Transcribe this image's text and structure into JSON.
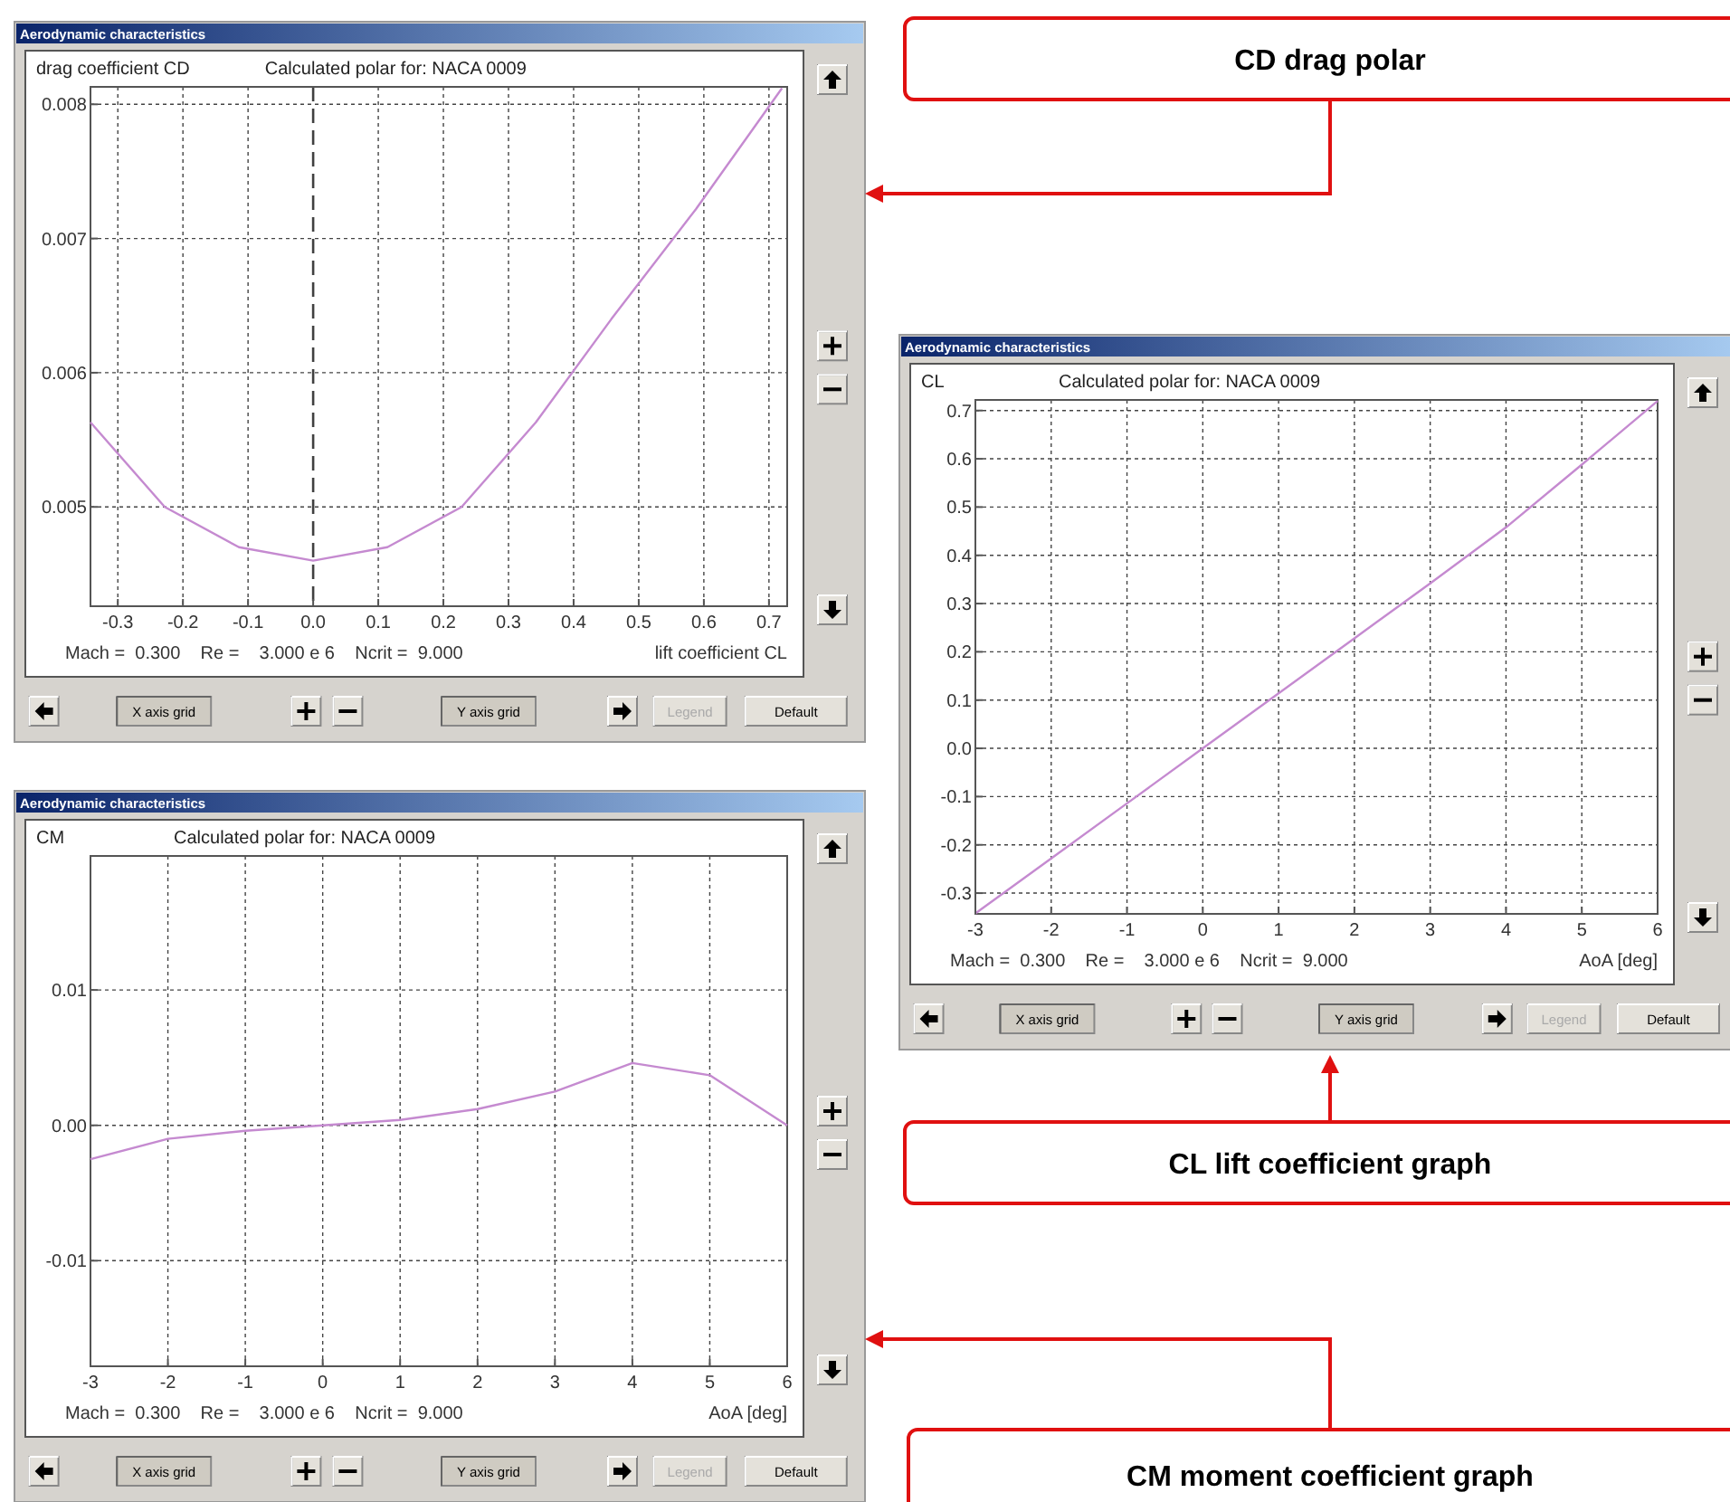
{
  "chart_data": [
    {
      "type": "line",
      "title": "Calculated polar for: NACA 0009",
      "ylabel": "drag coefficient CD",
      "xlabel": "lift coefficient CL",
      "annotations": [
        "Aerodynamic characteristics",
        "Mach =  0.300    Re =    3.000 e 6    Ncrit =  9.000",
        "X axis grid",
        "Y axis grid",
        "Legend",
        "Default",
        "CD drag polar"
      ],
      "x": [
        -0.342,
        -0.228,
        -0.114,
        0,
        0.114,
        0.228,
        0.342,
        0.458,
        0.588,
        0.72
      ],
      "series": [
        {
          "color": "#c58ad0",
          "values": [
            0.00563,
            0.005,
            0.0047,
            0.0046,
            0.0047,
            0.005,
            0.00563,
            0.0064,
            0.00722,
            0.00812
          ]
        }
      ],
      "xlim": [
        -0.342,
        0.728
      ],
      "ylim": [
        0.00426,
        0.00813
      ],
      "xticks": [
        -0.3,
        -0.2,
        -0.1,
        {
          "value": 0,
          "label": "0.0"
        },
        0.1,
        0.2,
        0.3,
        0.4,
        0.5,
        0.6,
        0.7
      ],
      "yticks": [
        0.005,
        0.006,
        0.007,
        0.008
      ],
      "grid": true,
      "ref_lines": [
        {
          "axis": "x",
          "value": 0,
          "label": null,
          "color": "#404040",
          "line_style": "dashed"
        }
      ]
    },
    {
      "type": "line",
      "title": "Calculated polar for: NACA 0009",
      "ylabel": "CL",
      "xlabel": "AoA [deg]",
      "annotations": [
        "Aerodynamic characteristics",
        "Mach =  0.300    Re =    3.000 e 6    Ncrit =  9.000",
        "X axis grid",
        "Y axis grid",
        "Legend",
        "Default",
        "CL lift coefficient graph"
      ],
      "x": [
        -3,
        -2,
        -1,
        0,
        1,
        2,
        3,
        4,
        5,
        6
      ],
      "series": [
        {
          "color": "#c58ad0",
          "values": [
            -0.342,
            -0.228,
            -0.114,
            0,
            0.114,
            0.228,
            0.342,
            0.458,
            0.588,
            0.72
          ]
        }
      ],
      "xlim": [
        -3,
        6
      ],
      "ylim": [
        -0.343,
        0.722
      ],
      "xticks": [
        -3,
        -2,
        -1,
        0,
        1,
        2,
        3,
        4,
        5,
        6
      ],
      "yticks": [
        -0.3,
        -0.2,
        -0.1,
        {
          "value": 0,
          "label": "0.0"
        },
        0.1,
        0.2,
        0.3,
        0.4,
        0.5,
        0.6,
        0.7
      ],
      "grid": true
    },
    {
      "type": "line",
      "title": "Calculated polar for: NACA 0009",
      "ylabel": "CM",
      "xlabel": "AoA [deg]",
      "annotations": [
        "Aerodynamic characteristics",
        "Mach =  0.300    Re =    3.000 e 6    Ncrit =  9.000",
        "X axis grid",
        "Y axis grid",
        "Legend",
        "Default",
        "CM moment coefficient graph"
      ],
      "x": [
        -3,
        -2,
        -1,
        0,
        1,
        2,
        3,
        4,
        5,
        6
      ],
      "series": [
        {
          "color": "#c58ad0",
          "values": [
            -0.0025,
            -0.001,
            -0.0004,
            0,
            0.0004,
            0.0012,
            0.0025,
            0.0046,
            0.0037,
            0
          ]
        }
      ],
      "xlim": [
        -3,
        6
      ],
      "ylim": [
        -0.0178,
        0.0199
      ],
      "xticks": [
        -3,
        -2,
        -1,
        0,
        1,
        2,
        3,
        4,
        5,
        6
      ],
      "yticks": [
        -0.01,
        {
          "value": 0,
          "label": "0.00"
        },
        0.01
      ],
      "grid": true
    }
  ]
}
